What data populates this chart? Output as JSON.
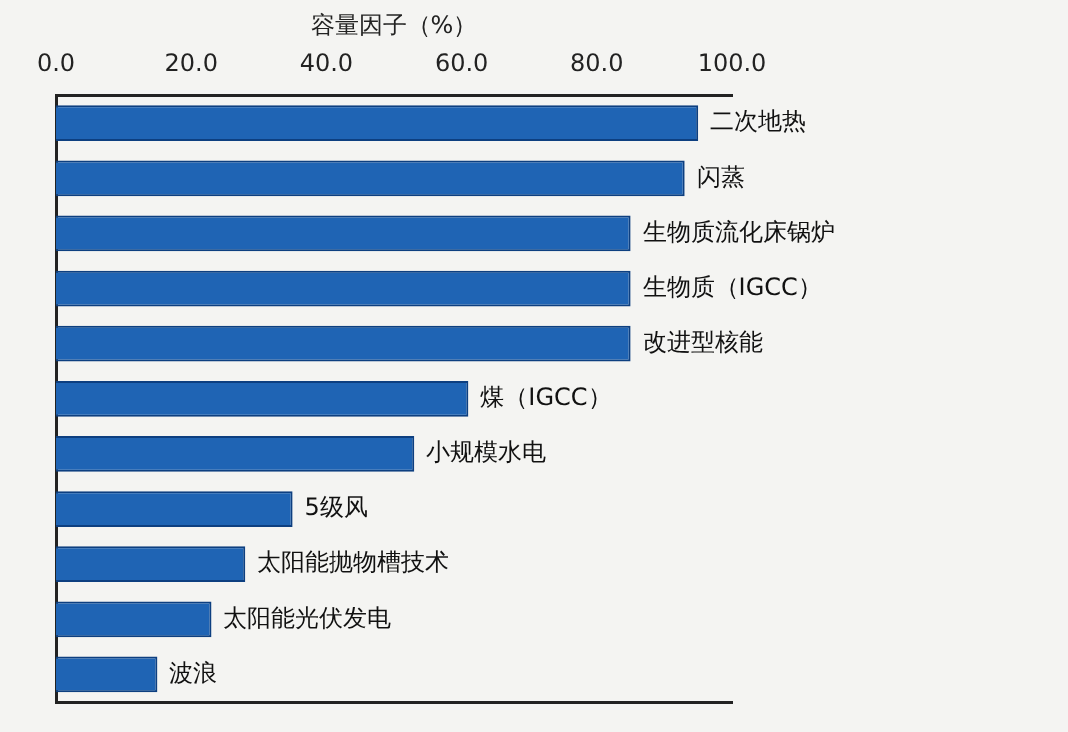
{
  "chart_data": {
    "type": "bar",
    "orientation": "horizontal",
    "xlabel": "容量因子（%）",
    "categories": [
      "二次地热",
      "闪蒸",
      "生物质流化床锅炉",
      "生物质（IGCC）",
      "改进型核能",
      "煤（IGCC）",
      "小规模水电",
      "5级风",
      "太阳能抛物槽技术",
      "太阳能光伏发电",
      "波浪"
    ],
    "values": [
      95,
      93,
      85,
      85,
      85,
      61,
      53,
      35,
      28,
      23,
      15
    ],
    "color": "#1f64b4",
    "xlim": [
      0,
      100
    ],
    "xticks": [
      {
        "value": 0,
        "label": "0.0"
      },
      {
        "value": 20,
        "label": "20.0"
      },
      {
        "value": 40,
        "label": "40.0"
      },
      {
        "value": 60,
        "label": "60.0"
      },
      {
        "value": 80,
        "label": "80.0"
      },
      {
        "value": 100,
        "label": "100.0"
      }
    ],
    "grid": false
  }
}
